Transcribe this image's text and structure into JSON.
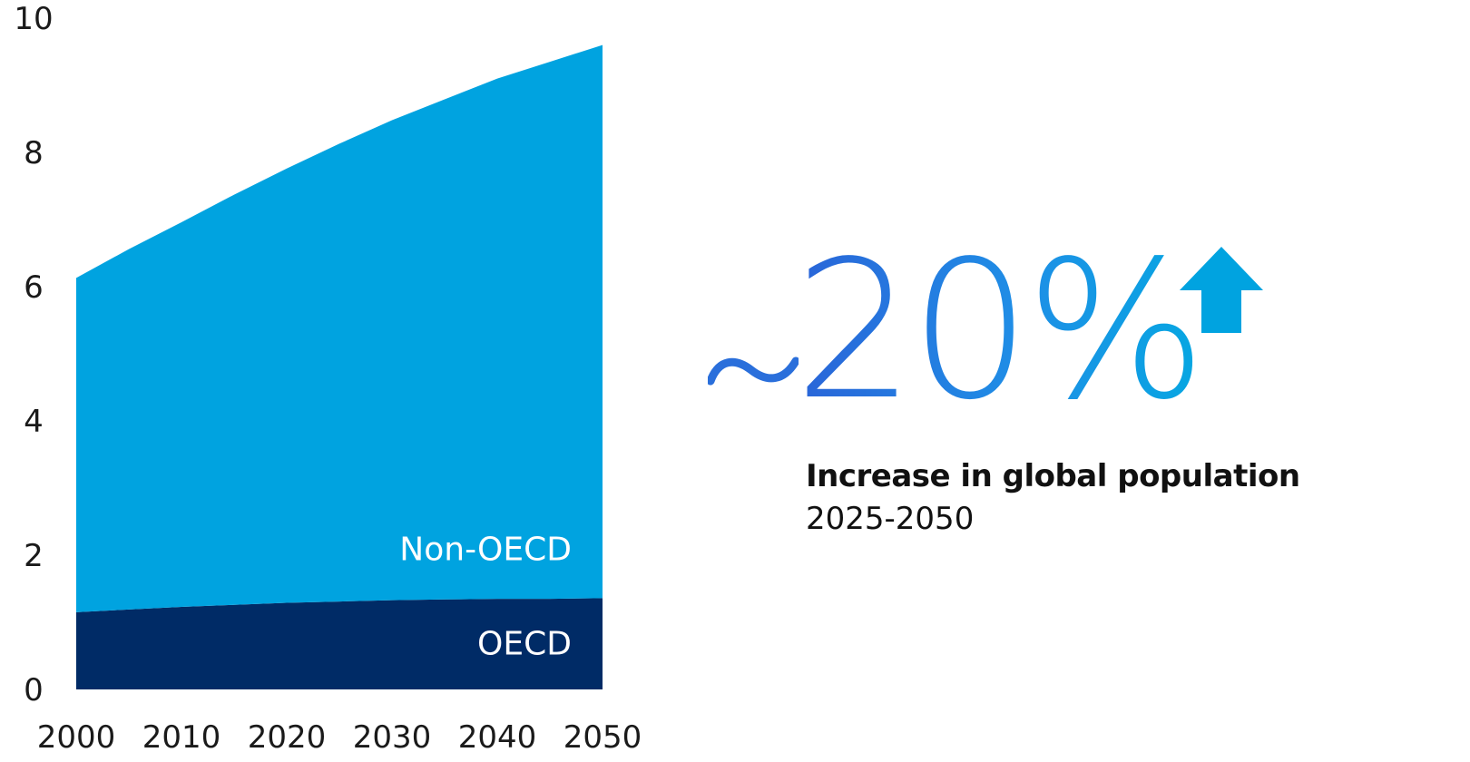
{
  "chart_data": {
    "type": "area",
    "stacked": true,
    "x": [
      2000,
      2005,
      2010,
      2015,
      2020,
      2025,
      2030,
      2035,
      2040,
      2045,
      2050
    ],
    "series": [
      {
        "name": "OECD",
        "values": [
          1.15,
          1.19,
          1.23,
          1.26,
          1.29,
          1.31,
          1.33,
          1.34,
          1.35,
          1.35,
          1.36
        ],
        "color": "#002b66"
      },
      {
        "name": "Non-OECD",
        "values": [
          4.98,
          5.37,
          5.73,
          6.11,
          6.47,
          6.82,
          7.15,
          7.45,
          7.75,
          8.0,
          8.24
        ],
        "color": "#00a3e0"
      }
    ],
    "ylim": [
      0,
      10
    ],
    "yticks": [
      "0",
      "2",
      "4",
      "6",
      "8",
      "10"
    ],
    "xticks": [
      "2000",
      "2010",
      "2020",
      "2030",
      "2040",
      "2050"
    ],
    "xtick_values": [
      2000,
      2010,
      2020,
      2030,
      2040,
      2050
    ],
    "title": "",
    "xlabel": "",
    "ylabel": "",
    "grid": false,
    "legend": "inline-labels"
  },
  "callout": {
    "value": "20%",
    "caption": "Increase in global population",
    "period": "2025-2050",
    "tilde_icon": "tilde-icon",
    "arrow_icon": "arrow-up-icon",
    "tilde_color": "#2a6fdb",
    "arrow_color": "#00a3e0"
  }
}
